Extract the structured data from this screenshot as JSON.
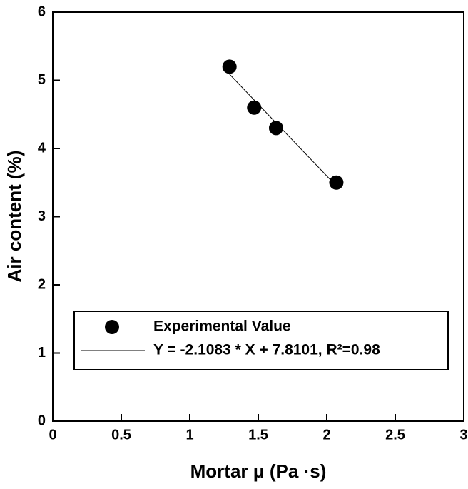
{
  "chart_data": {
    "type": "scatter",
    "x_label": "Mortar μ (Pa ·s)",
    "y_label": "Air content (%)",
    "xlim": [
      0,
      3
    ],
    "xticks": [
      0,
      0.5,
      1,
      1.5,
      2,
      2.5,
      3
    ],
    "ylim": [
      0,
      6
    ],
    "yticks": [
      0,
      1,
      2,
      3,
      4,
      5,
      6
    ],
    "series": [
      {
        "name": "Experimental Value",
        "kind": "markers",
        "color": "#000000",
        "x": [
          1.29,
          1.47,
          1.63,
          2.07
        ],
        "values": [
          5.2,
          4.6,
          4.3,
          3.5
        ]
      },
      {
        "name": "Y = -2.1083 * X + 7.8101, R²=0.98",
        "kind": "line",
        "color": "#000000",
        "x": [
          1.29,
          2.07
        ],
        "values": [
          5.09,
          3.45
        ]
      }
    ]
  }
}
